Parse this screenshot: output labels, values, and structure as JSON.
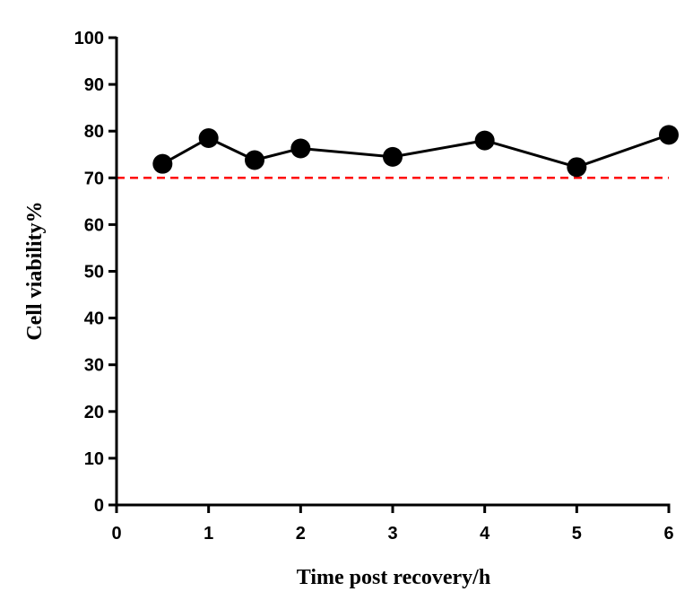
{
  "chart_data": {
    "type": "line",
    "title": "",
    "xlabel": "Time post recovery/h",
    "ylabel": "Cell viability%",
    "xlim": [
      0,
      6
    ],
    "ylim": [
      0,
      100
    ],
    "xticks": [
      0,
      1,
      2,
      3,
      4,
      5,
      6
    ],
    "yticks": [
      0,
      10,
      20,
      30,
      40,
      50,
      60,
      70,
      80,
      90,
      100
    ],
    "grid": false,
    "series": [
      {
        "x": [
          0.5,
          1,
          1.5,
          2,
          3,
          4,
          5,
          6
        ],
        "y": [
          73,
          78.5,
          73.8,
          76.3,
          74.5,
          78,
          72.3,
          79.2
        ],
        "color": "#000000",
        "marker": "circle"
      }
    ],
    "reference_lines": [
      {
        "y": 70,
        "color": "#ff0000",
        "style": "dashed"
      }
    ]
  }
}
